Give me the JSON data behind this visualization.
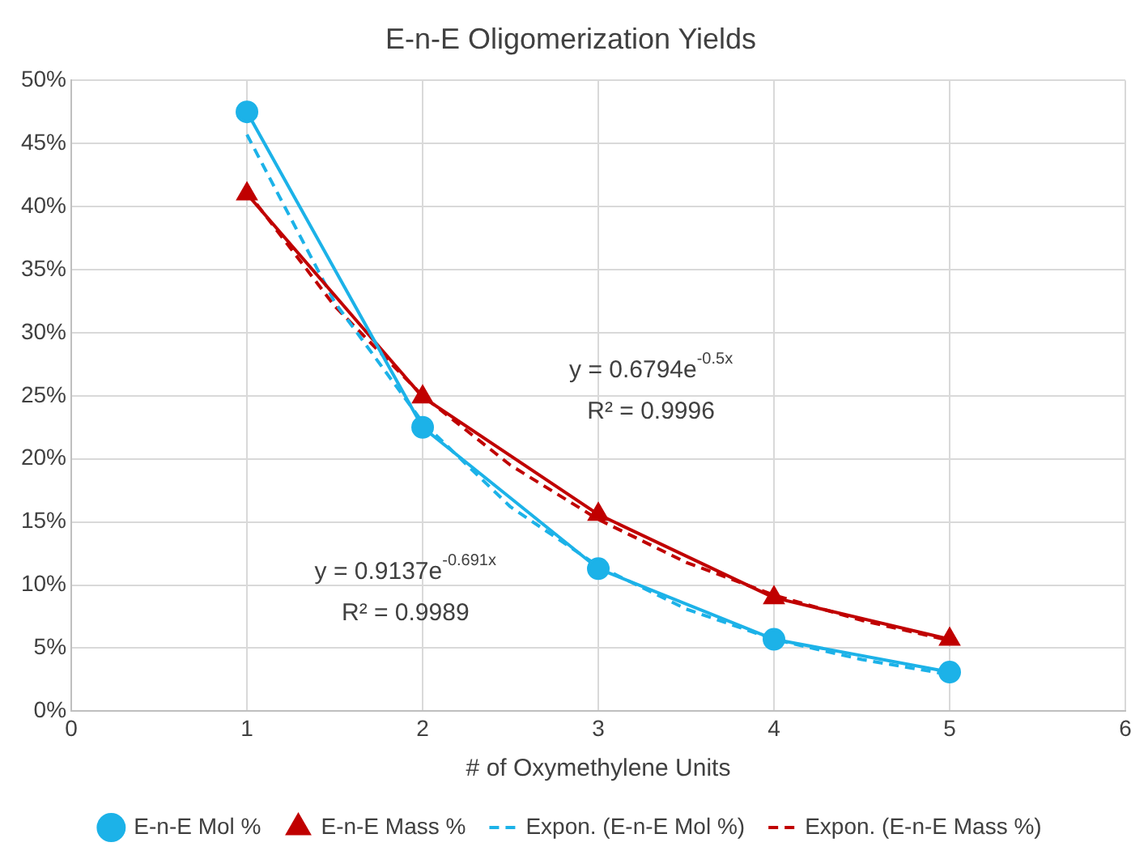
{
  "chart_data": {
    "type": "line",
    "title": "E-n-E Oligomerization Yields",
    "xlabel": "# of Oxymethylene Units",
    "xlim": [
      0,
      6
    ],
    "xticks": [
      0,
      1,
      2,
      3,
      4,
      5,
      6
    ],
    "ylim": [
      0,
      50
    ],
    "yticks": [
      {
        "value": 0,
        "label": "0%"
      },
      {
        "value": 5,
        "label": "5%"
      },
      {
        "value": 10,
        "label": "10%"
      },
      {
        "value": 15,
        "label": "15%"
      },
      {
        "value": 20,
        "label": "20%"
      },
      {
        "value": 25,
        "label": "25%"
      },
      {
        "value": 30,
        "label": "30%"
      },
      {
        "value": 35,
        "label": "35%"
      },
      {
        "value": 40,
        "label": "40%"
      },
      {
        "value": 45,
        "label": "45%"
      },
      {
        "value": 50,
        "label": "50%"
      }
    ],
    "grid": true,
    "legend": "bottom",
    "series": [
      {
        "name": "E-n-E Mol %",
        "color": "#1cb2e8",
        "marker": "circle",
        "line_style": "solid",
        "x": [
          1,
          2,
          3,
          4,
          5
        ],
        "values": [
          47.5,
          22.5,
          11.3,
          5.7,
          3.1
        ]
      },
      {
        "name": "E-n-E Mass %",
        "color": "#c00000",
        "marker": "triangle",
        "line_style": "solid",
        "x": [
          1,
          2,
          3,
          4,
          5
        ],
        "values": [
          41,
          24.9,
          15.6,
          9,
          5.7
        ]
      },
      {
        "name": "Expon. (E-n-E Mol %)",
        "color": "#1cb2e8",
        "marker": "none",
        "line_style": "dashed",
        "x": [
          1,
          1.5,
          2,
          2.5,
          3,
          3.5,
          4,
          4.5,
          5
        ],
        "values": [
          45.7,
          32.4,
          22.9,
          16.2,
          11.5,
          8.1,
          5.7,
          4.1,
          2.9
        ]
      },
      {
        "name": "Expon. (E-n-E Mass %)",
        "color": "#c00000",
        "marker": "none",
        "line_style": "dashed",
        "x": [
          1,
          1.5,
          2,
          2.5,
          3,
          3.5,
          4,
          4.5,
          5
        ],
        "values": [
          41.2,
          32.1,
          25,
          19.5,
          15.2,
          11.8,
          9.2,
          7.2,
          5.6
        ]
      }
    ],
    "annotations": [
      "y = 0.6794e$^{-0.5x}$",
      "R² = 0.9996",
      "y = 0.9137e$^{-0.691x}$",
      "R² = 0.9989"
    ]
  }
}
